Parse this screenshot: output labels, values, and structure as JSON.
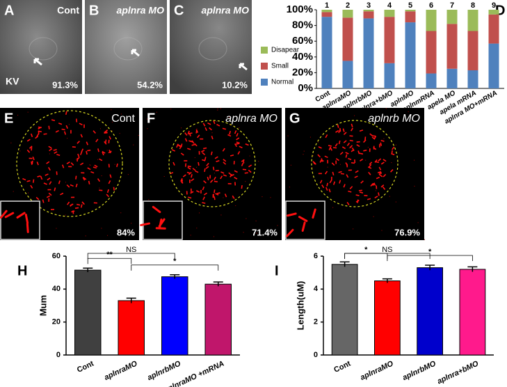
{
  "panels": [
    {
      "letter": "A",
      "label": "Cont",
      "percent": "91.3%",
      "note": "KV"
    },
    {
      "letter": "B",
      "label": "aplnra MO",
      "percent": "54.2%"
    },
    {
      "letter": "C",
      "label": "aplnra MO",
      "percent": "10.2%"
    }
  ],
  "cilia_panels": [
    {
      "letter": "E",
      "label": "Cont",
      "percent": "84%"
    },
    {
      "letter": "F",
      "label": "aplnra MO",
      "percent": "71.4%"
    },
    {
      "letter": "G",
      "label": "aplnrb MO",
      "percent": "76.9%"
    }
  ],
  "chart_data": [
    {
      "type": "stacked_bar",
      "label": "D",
      "categories": [
        "Cont",
        "aplnraMO",
        "aplnrbMO",
        "aplnra+bMO",
        "aplnMO",
        "aplnmRNA",
        "apela MO",
        "apela mRNA",
        "aplnra MO+mRNA"
      ],
      "bar_numbers": [
        "1",
        "2",
        "3",
        "4",
        "5",
        "6",
        "7",
        "8",
        "9"
      ],
      "series": [
        {
          "name": "Normal",
          "color": "#4f81bd",
          "values": [
            91,
            35,
            89,
            32,
            84,
            19,
            25,
            23,
            57
          ]
        },
        {
          "name": "Small",
          "color": "#c0504d",
          "values": [
            6,
            55,
            9,
            59,
            14,
            54,
            57,
            50,
            37
          ]
        },
        {
          "name": "Disapear",
          "color": "#9bbb59",
          "values": [
            3,
            10,
            2,
            9,
            2,
            27,
            18,
            27,
            6
          ]
        }
      ],
      "ylim": [
        0,
        100
      ],
      "yticks": [
        {
          "value": 0,
          "label": "0%"
        },
        {
          "value": 20,
          "label": "20%"
        },
        {
          "value": 40,
          "label": "40%"
        },
        {
          "value": 60,
          "label": "60%"
        },
        {
          "value": 80,
          "label": "80%"
        },
        {
          "value": 100,
          "label": "100%"
        }
      ]
    },
    {
      "type": "bar",
      "label": "H",
      "ylabel": "Mum",
      "categories": [
        "Cont",
        "aplnraMO",
        "aplnrbMO",
        "aplnraMO +mRNA"
      ],
      "values": [
        51.5,
        33,
        47.5,
        43
      ],
      "errors": [
        1.2,
        1.5,
        1.2,
        1.3
      ],
      "colors": [
        "#404040",
        "#ff0000",
        "#0000ff",
        "#c0166b"
      ],
      "ylim": [
        0,
        60
      ],
      "yticks": [
        0,
        20,
        40,
        60
      ],
      "annotations": [
        {
          "text": "**",
          "between": [
            0,
            1
          ]
        },
        {
          "text": "NS",
          "between": [
            0,
            2
          ]
        },
        {
          "text": "*",
          "between": [
            1,
            3
          ]
        }
      ]
    },
    {
      "type": "bar",
      "label": "I",
      "ylabel": "Length(uM)",
      "categories": [
        "Cont",
        "aplnraMO",
        "aplnrbMO",
        "aplnra+bMO"
      ],
      "values": [
        5.5,
        4.5,
        5.3,
        5.2
      ],
      "errors": [
        0.15,
        0.12,
        0.15,
        0.15
      ],
      "colors": [
        "#666666",
        "#ff0000",
        "#0000cc",
        "#ff1a8c"
      ],
      "ylim": [
        0,
        6
      ],
      "yticks": [
        0,
        2,
        4,
        6
      ],
      "annotations": [
        {
          "text": "*",
          "between": [
            0,
            1
          ]
        },
        {
          "text": "NS",
          "between": [
            0,
            2
          ]
        },
        {
          "text": "*",
          "between": [
            1,
            3
          ]
        }
      ]
    }
  ]
}
